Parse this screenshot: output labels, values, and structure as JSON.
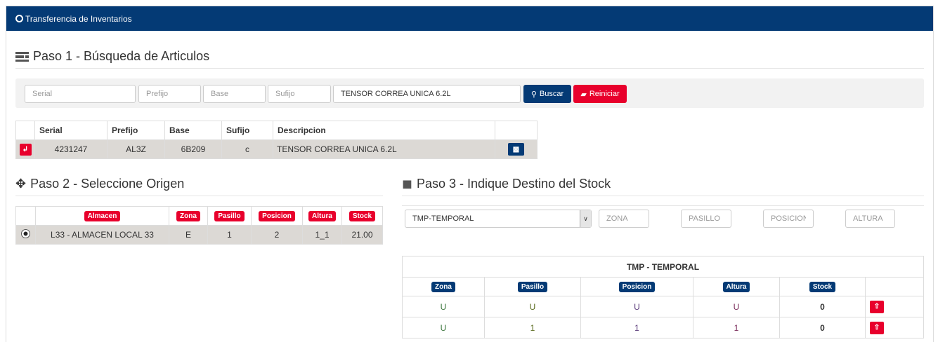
{
  "header": {
    "title": "Transferencia de Inventarios"
  },
  "step1": {
    "title": "Paso 1 - Búsqueda de Articulos",
    "serial_placeholder": "Serial",
    "prefijo_placeholder": "Prefijo",
    "base_placeholder": "Base",
    "sufijo_placeholder": "Sufijo",
    "descripcion_value": "TENSOR CORREA UNICA 6.2L",
    "buscar_label": "Buscar",
    "reiniciar_label": "Reiniciar",
    "columns": [
      "Serial",
      "Prefijo",
      "Base",
      "Sufijo",
      "Descripcion"
    ],
    "rows": [
      {
        "serial": "4231247",
        "prefijo": "AL3Z",
        "base": "6B209",
        "sufijo": "c",
        "descripcion": "TENSOR CORREA UNICA 6.2L"
      }
    ]
  },
  "step2": {
    "title": "Paso 2 - Seleccione Origen",
    "columns": [
      "Almacen",
      "Zona",
      "Pasillo",
      "Posicion",
      "Altura",
      "Stock"
    ],
    "rows": [
      {
        "almacen": "L33 - ALMACEN LOCAL 33",
        "zona": "E",
        "pasillo": "1",
        "posicion": "2",
        "altura": "1_1",
        "stock": "21.00",
        "selected": true
      }
    ]
  },
  "step3": {
    "title": "Paso 3 - Indique Destino del Stock",
    "almacen_selected": "TMP-TEMPORAL",
    "zona_placeholder": "ZONA",
    "pasillo_placeholder": "PASILLO",
    "posicion_placeholder": "POSICION",
    "altura_placeholder": "ALTURA",
    "table_title": "TMP - TEMPORAL",
    "columns": [
      "Zona",
      "Pasillo",
      "Posicion",
      "Altura",
      "Stock"
    ],
    "rows": [
      {
        "zona": "U",
        "pasillo": "U",
        "posicion": "U",
        "altura": "U",
        "stock": "0"
      },
      {
        "zona": "U",
        "pasillo": "1",
        "posicion": "1",
        "altura": "1",
        "stock": "0"
      }
    ]
  },
  "colors": {
    "primary": "#043a75",
    "danger": "#e8002c"
  }
}
